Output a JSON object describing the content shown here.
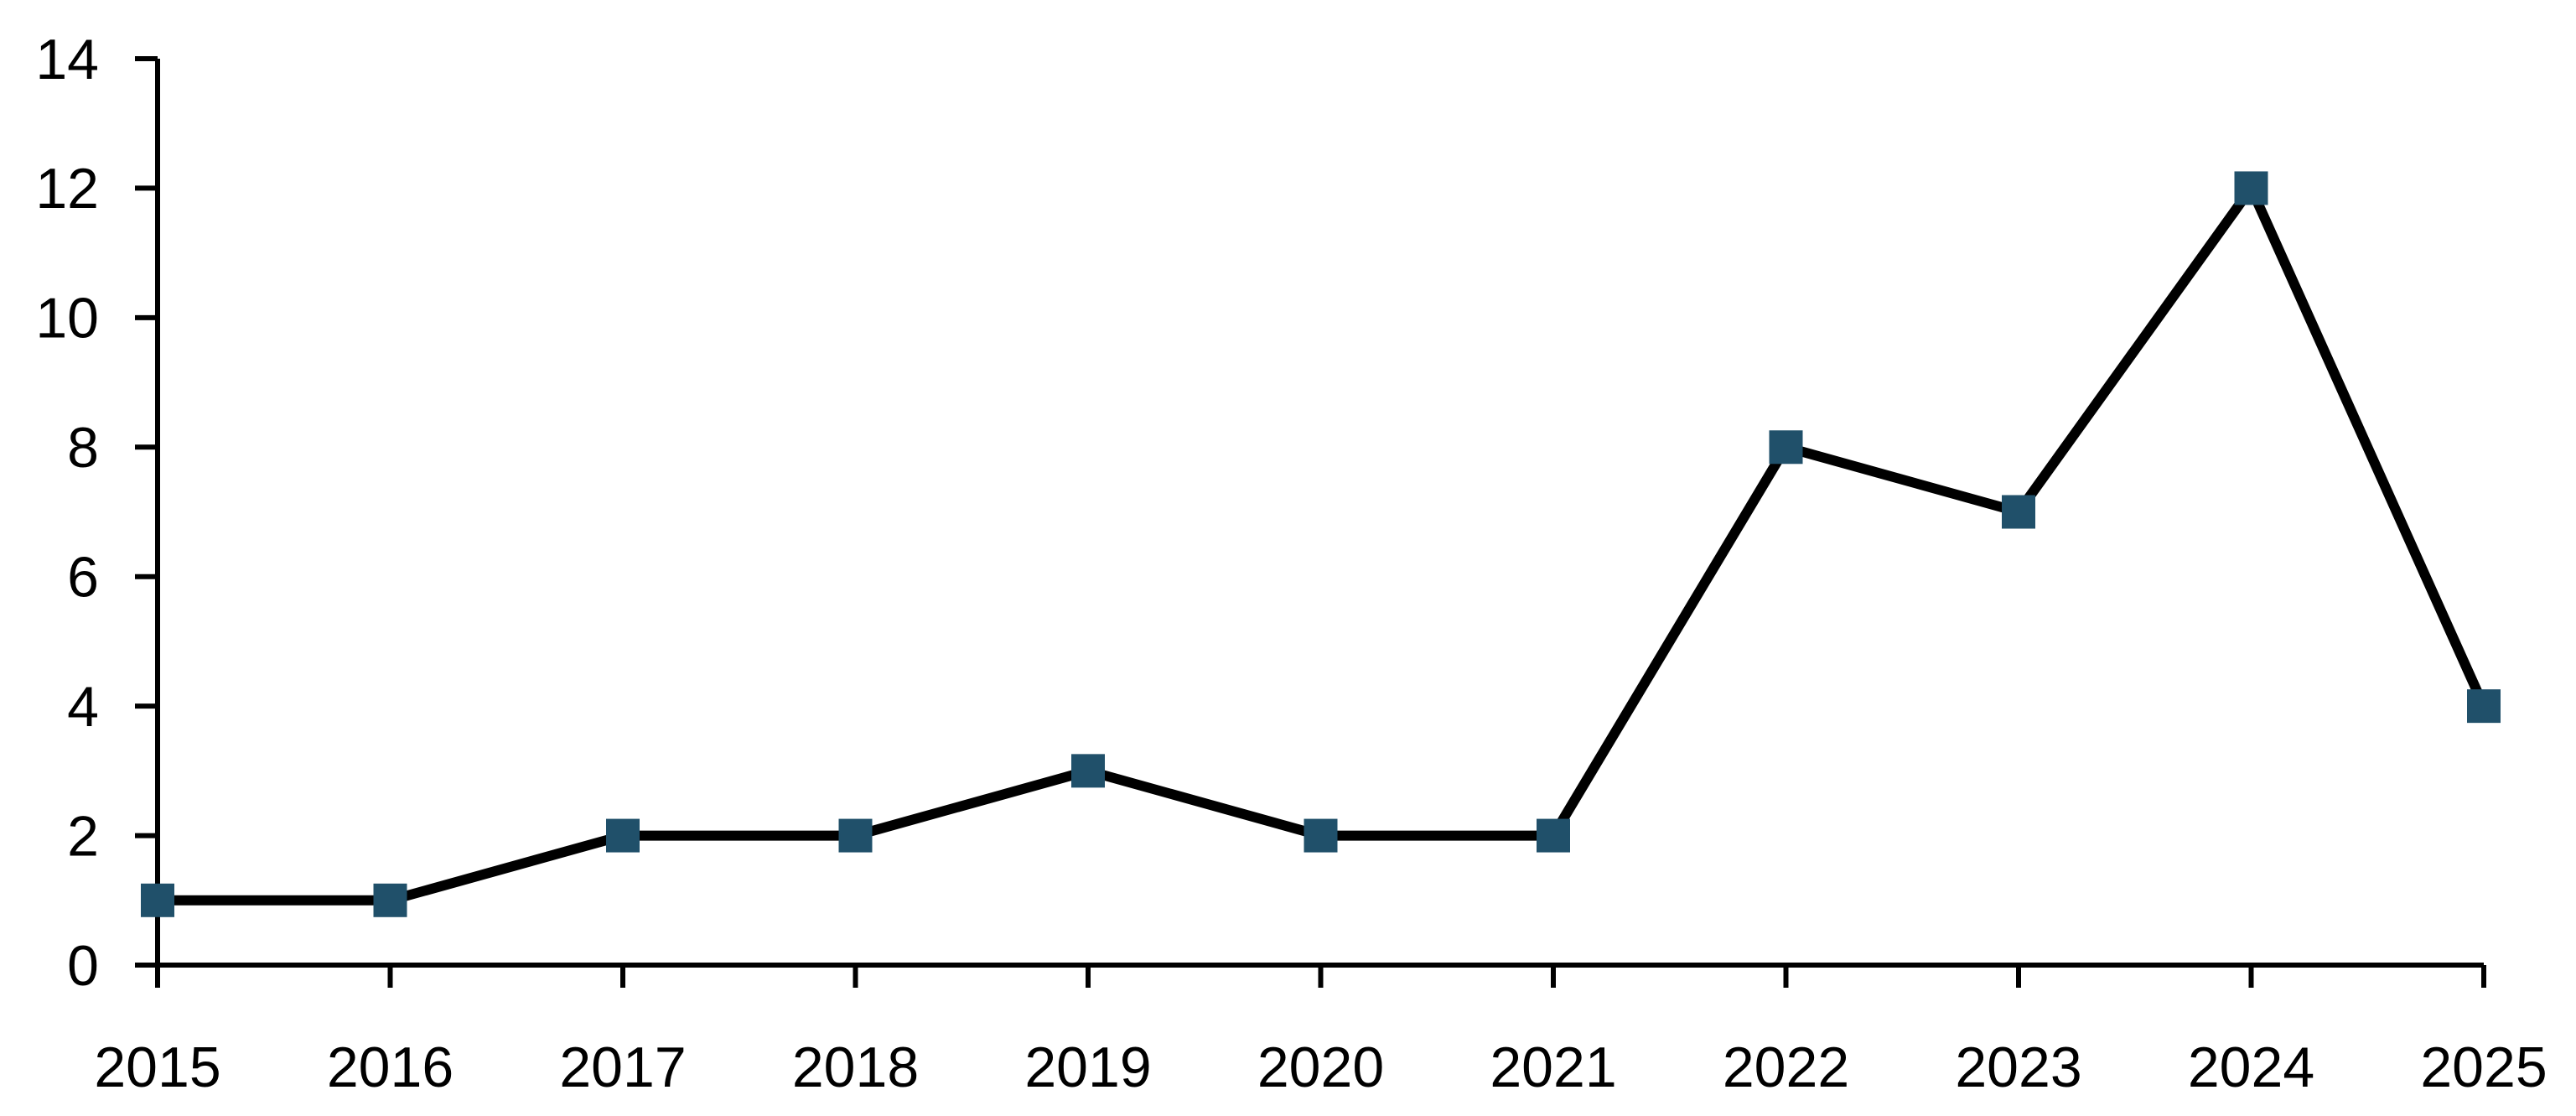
{
  "chart_data": {
    "type": "line",
    "title": "",
    "categories": [
      "2015",
      "2016",
      "2017",
      "2018",
      "2019",
      "2020",
      "2021",
      "2022",
      "2023",
      "2024",
      "2025"
    ],
    "values": [
      1,
      1,
      2,
      2,
      3,
      2,
      2,
      8,
      7,
      12,
      4
    ],
    "xlabel": "",
    "ylabel": "",
    "ylim": [
      0,
      14
    ],
    "y_ticks": [
      0,
      2,
      4,
      6,
      8,
      10,
      12,
      14
    ],
    "grid": false,
    "legend": false,
    "marker_shape": "square",
    "colors": {
      "line": "#000000",
      "marker": "#20506A",
      "axis": "#000000",
      "tick_label": "#000000",
      "background": "#FFFFFF"
    }
  }
}
